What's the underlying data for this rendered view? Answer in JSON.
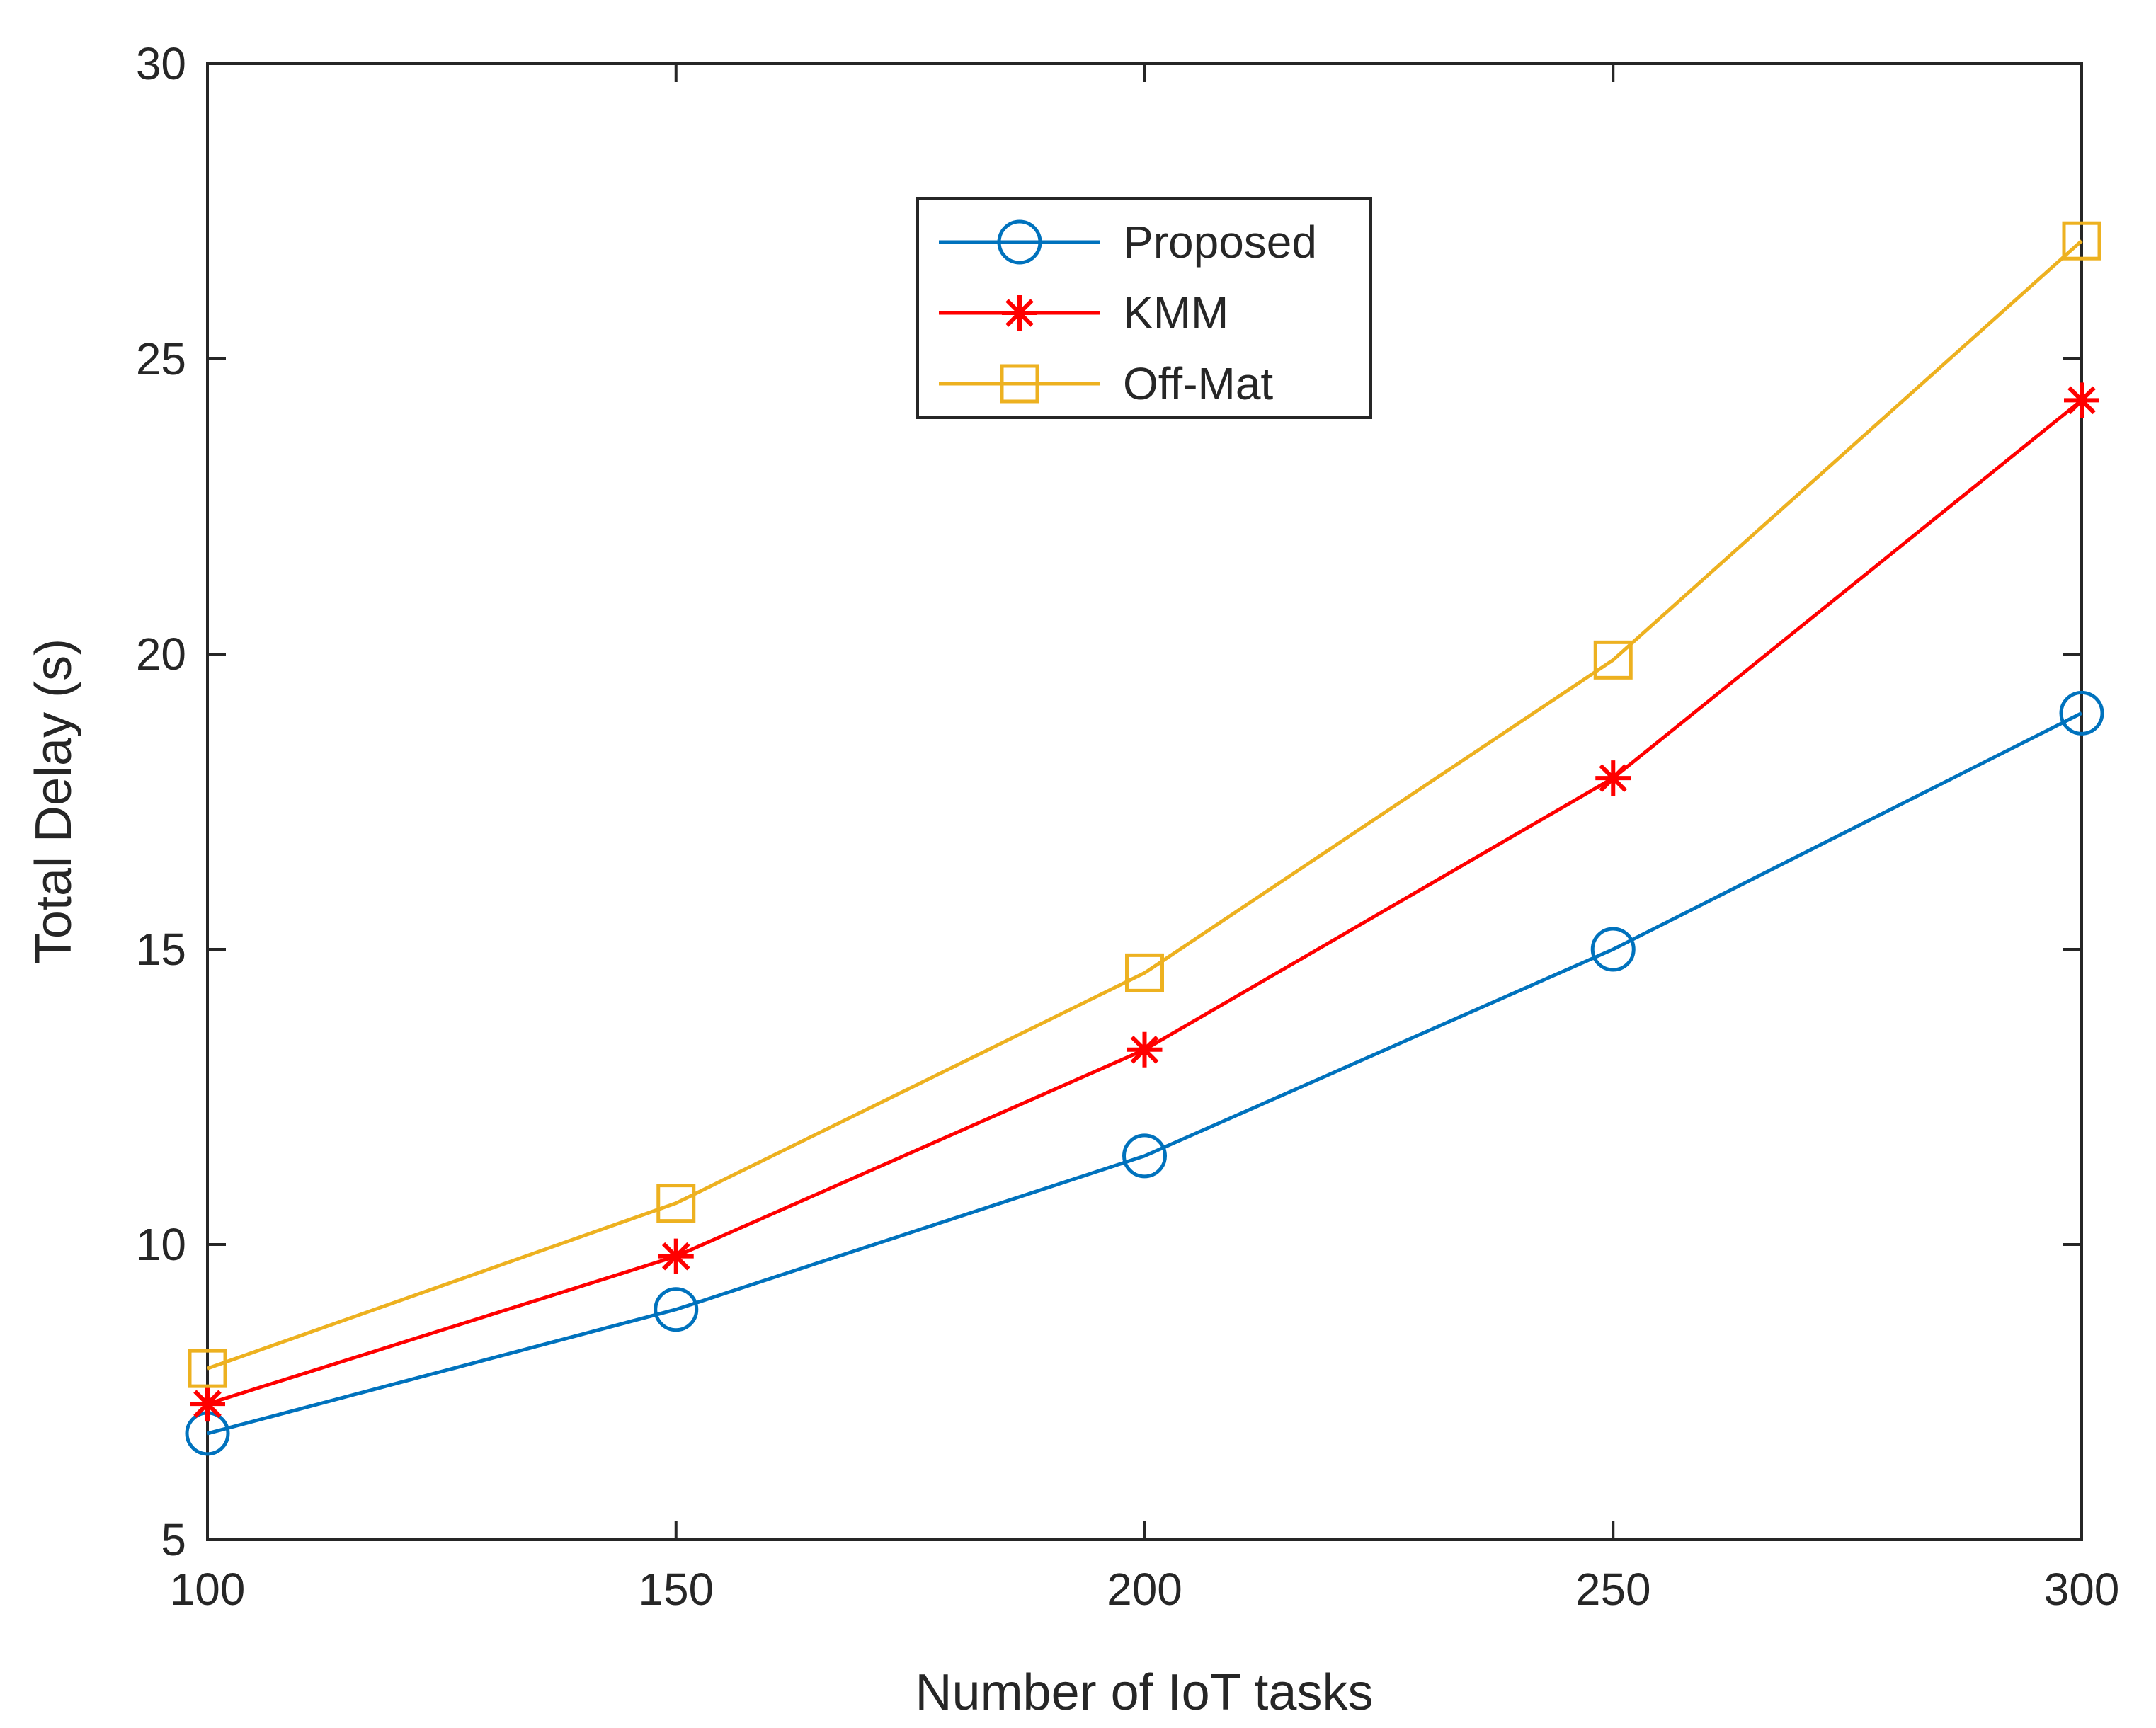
{
  "chart_data": {
    "type": "line",
    "title": "",
    "xlabel": "Number of IoT tasks",
    "ylabel": "Total Delay (s)",
    "x": [
      100,
      150,
      200,
      250,
      300
    ],
    "xlim": [
      100,
      300
    ],
    "ylim": [
      5,
      30
    ],
    "xticks": [
      100,
      150,
      200,
      250,
      300
    ],
    "yticks": [
      5,
      10,
      15,
      20,
      25,
      30
    ],
    "grid": false,
    "legend_position": "top-center",
    "series": [
      {
        "name": "Proposed",
        "marker": "circle",
        "color": "#0072BD",
        "values": [
          6.8,
          8.9,
          11.5,
          15.0,
          19.0
        ]
      },
      {
        "name": "KMM",
        "marker": "asterisk",
        "color": "#FF0000",
        "values": [
          7.3,
          9.8,
          13.3,
          17.9,
          24.3
        ]
      },
      {
        "name": "Off-Mat",
        "marker": "square",
        "color": "#EDB120",
        "values": [
          7.9,
          10.7,
          14.6,
          19.9,
          27.0
        ]
      }
    ]
  }
}
